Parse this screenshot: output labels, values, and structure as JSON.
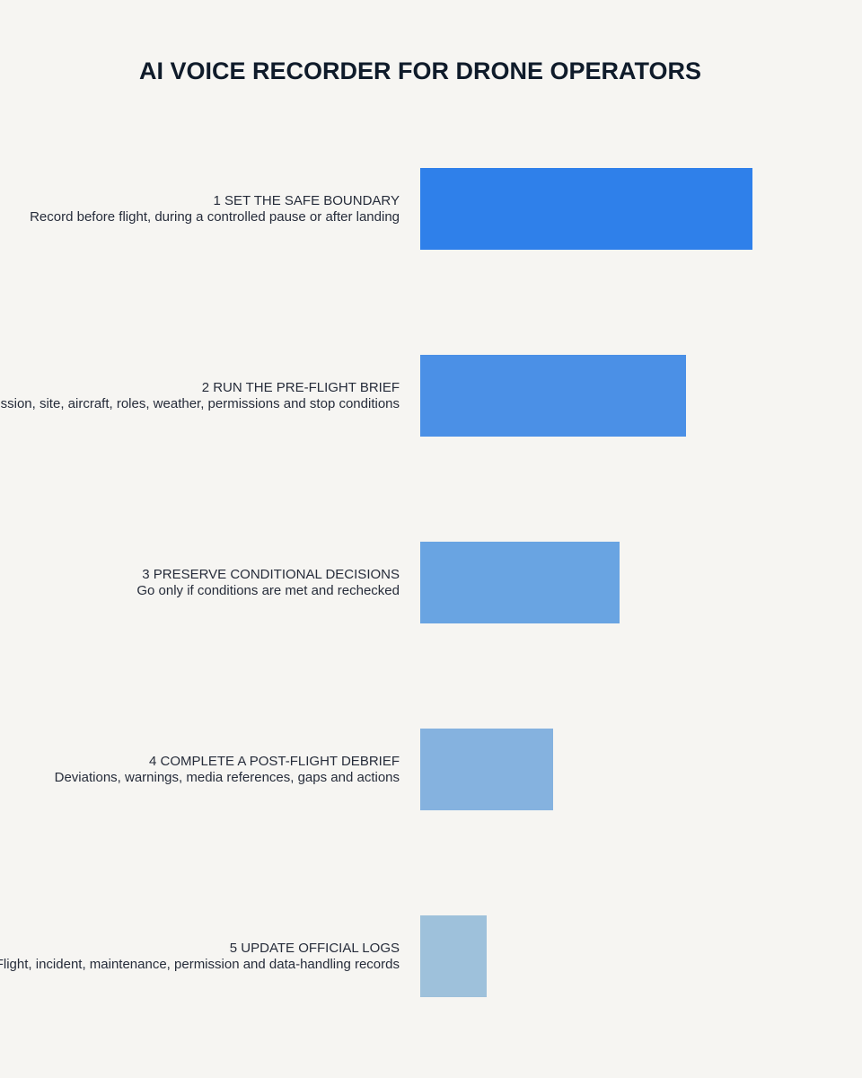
{
  "chart_data": {
    "type": "bar",
    "orientation": "horizontal",
    "title": "AI VOICE RECORDER FOR DRONE OPERATORS",
    "categories": [
      "1 SET THE SAFE BOUNDARY",
      "2 RUN THE PRE-FLIGHT BRIEF",
      "3 PRESERVE CONDITIONAL DECISIONS",
      "4 COMPLETE A POST-FLIGHT DEBRIEF",
      "5 UPDATE OFFICIAL LOGS"
    ],
    "descriptions": [
      "Record before flight, during a controlled pause or after landing",
      "Mission, site, aircraft, roles, weather, permissions and stop conditions",
      "Go only if conditions are met and rechecked",
      "Deviations, warnings, media references, gaps and actions",
      "Flight, incident, maintenance, permission and data-handling records"
    ],
    "values": [
      5,
      4,
      3,
      2,
      1
    ],
    "colors": [
      "#2f80ea",
      "#4b90e6",
      "#69a4e2",
      "#85b2df",
      "#9ec1db"
    ],
    "xlim": [
      0,
      5
    ]
  }
}
